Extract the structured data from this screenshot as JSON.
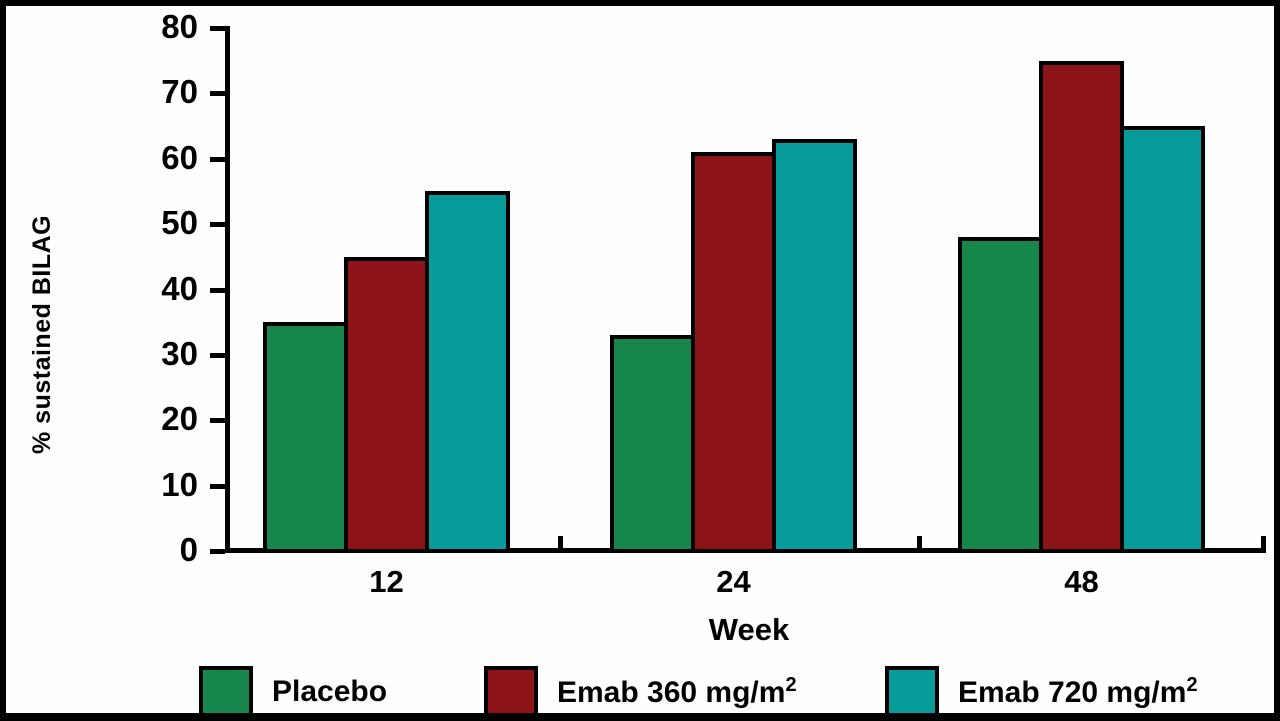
{
  "chart_data": {
    "type": "bar",
    "title": "",
    "xlabel": "Week",
    "ylabel": "% sustained BILAG",
    "categories": [
      "12",
      "24",
      "48"
    ],
    "series": [
      {
        "name": "Placebo",
        "color": "#17864a",
        "values": [
          35,
          33,
          48
        ]
      },
      {
        "name": "Emab 360 mg/m2",
        "color": "#8c1418",
        "values": [
          45,
          61,
          75
        ]
      },
      {
        "name": "Emab 720 mg/m2",
        "color": "#089b9c",
        "values": [
          55,
          63,
          65
        ]
      }
    ],
    "ylim": [
      0,
      80
    ],
    "yticks": [
      0,
      10,
      20,
      30,
      40,
      50,
      60,
      70,
      80
    ],
    "grid": false,
    "legend_position": "bottom",
    "axis_color": "#000000",
    "background_color": "#fefefe",
    "frame_color": "#000000"
  },
  "axes": {
    "x_title": "Week",
    "y_title": "% sustained BILAG"
  },
  "legend": {
    "items": [
      {
        "prefix": "Placebo",
        "sup": "",
        "color": "#17864a"
      },
      {
        "prefix": "Emab 360 mg/m",
        "sup": "2",
        "color": "#8c1418"
      },
      {
        "prefix": "Emab 720 mg/m",
        "sup": "2",
        "color": "#089b9c"
      }
    ]
  }
}
